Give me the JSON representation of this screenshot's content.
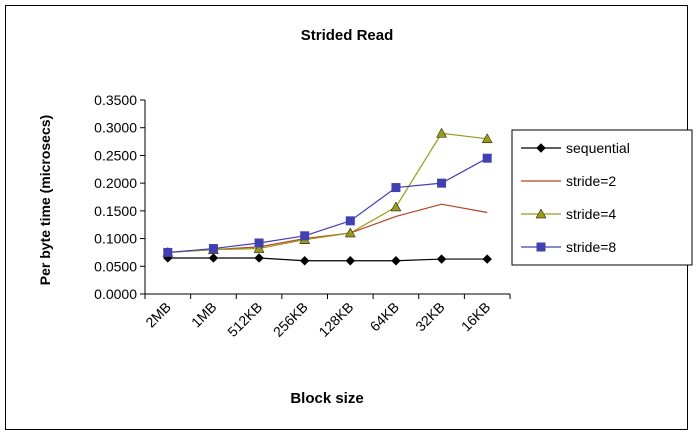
{
  "chart_data": {
    "type": "line",
    "title": "Strided Read",
    "xlabel": "Block size",
    "ylabel": "Per byte time (microsecs)",
    "categories": [
      "2MB",
      "1MB",
      "512KB",
      "256KB",
      "128KB",
      "64KB",
      "32KB",
      "16KB"
    ],
    "ylim": [
      0,
      0.35
    ],
    "yticks": [
      "0.0000",
      "0.0500",
      "0.1000",
      "0.1500",
      "0.2000",
      "0.2500",
      "0.3000",
      "0.3500"
    ],
    "grid": false,
    "legend_position": "right",
    "series": [
      {
        "name": "sequential",
        "color": "#000000",
        "marker": "diamond",
        "values": [
          0.065,
          0.065,
          0.065,
          0.06,
          0.06,
          0.06,
          0.063,
          0.063
        ]
      },
      {
        "name": "stride=2",
        "color": "#B5441F",
        "marker": "none",
        "values": [
          0.075,
          0.08,
          0.085,
          0.1,
          0.11,
          0.14,
          0.162,
          0.147
        ]
      },
      {
        "name": "stride=4",
        "color": "#9A9A1A",
        "marker": "triangle",
        "values": [
          0.075,
          0.08,
          0.082,
          0.098,
          0.11,
          0.157,
          0.29,
          0.28
        ]
      },
      {
        "name": "stride=8",
        "color": "#4040B0",
        "marker": "square",
        "values": [
          0.075,
          0.082,
          0.092,
          0.105,
          0.132,
          0.192,
          0.2,
          0.245
        ]
      }
    ]
  }
}
